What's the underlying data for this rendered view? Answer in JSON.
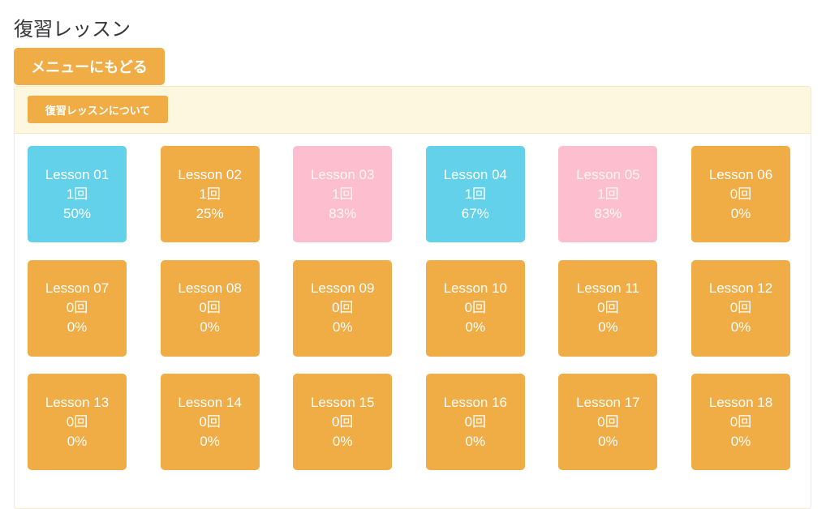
{
  "header": {
    "title": "復習レッスン",
    "back_button": "メニューにもどる"
  },
  "panel": {
    "about_button": "復習レッスンについて",
    "lessons": [
      {
        "name": "Lesson 01",
        "count": "1回",
        "rate": "50%",
        "color": "#63d1e9"
      },
      {
        "name": "Lesson 02",
        "count": "1回",
        "rate": "25%",
        "color": "#f0ac45"
      },
      {
        "name": "Lesson 03",
        "count": "1回",
        "rate": "83%",
        "color": "#fdbfcf"
      },
      {
        "name": "Lesson 04",
        "count": "1回",
        "rate": "67%",
        "color": "#63d1e9"
      },
      {
        "name": "Lesson 05",
        "count": "1回",
        "rate": "83%",
        "color": "#fdbfcf"
      },
      {
        "name": "Lesson 06",
        "count": "0回",
        "rate": "0%",
        "color": "#f0ac45"
      },
      {
        "name": "Lesson 07",
        "count": "0回",
        "rate": "0%",
        "color": "#f0ac45"
      },
      {
        "name": "Lesson 08",
        "count": "0回",
        "rate": "0%",
        "color": "#f0ac45"
      },
      {
        "name": "Lesson 09",
        "count": "0回",
        "rate": "0%",
        "color": "#f0ac45"
      },
      {
        "name": "Lesson 10",
        "count": "0回",
        "rate": "0%",
        "color": "#f0ac45"
      },
      {
        "name": "Lesson 11",
        "count": "0回",
        "rate": "0%",
        "color": "#f0ac45"
      },
      {
        "name": "Lesson 12",
        "count": "0回",
        "rate": "0%",
        "color": "#f0ac45"
      },
      {
        "name": "Lesson 13",
        "count": "0回",
        "rate": "0%",
        "color": "#f0ac45"
      },
      {
        "name": "Lesson 14",
        "count": "0回",
        "rate": "0%",
        "color": "#f0ac45"
      },
      {
        "name": "Lesson 15",
        "count": "0回",
        "rate": "0%",
        "color": "#f0ac45"
      },
      {
        "name": "Lesson 16",
        "count": "0回",
        "rate": "0%",
        "color": "#f0ac45"
      },
      {
        "name": "Lesson 17",
        "count": "0回",
        "rate": "0%",
        "color": "#f0ac45"
      },
      {
        "name": "Lesson 18",
        "count": "0回",
        "rate": "0%",
        "color": "#f0ac45"
      }
    ]
  }
}
